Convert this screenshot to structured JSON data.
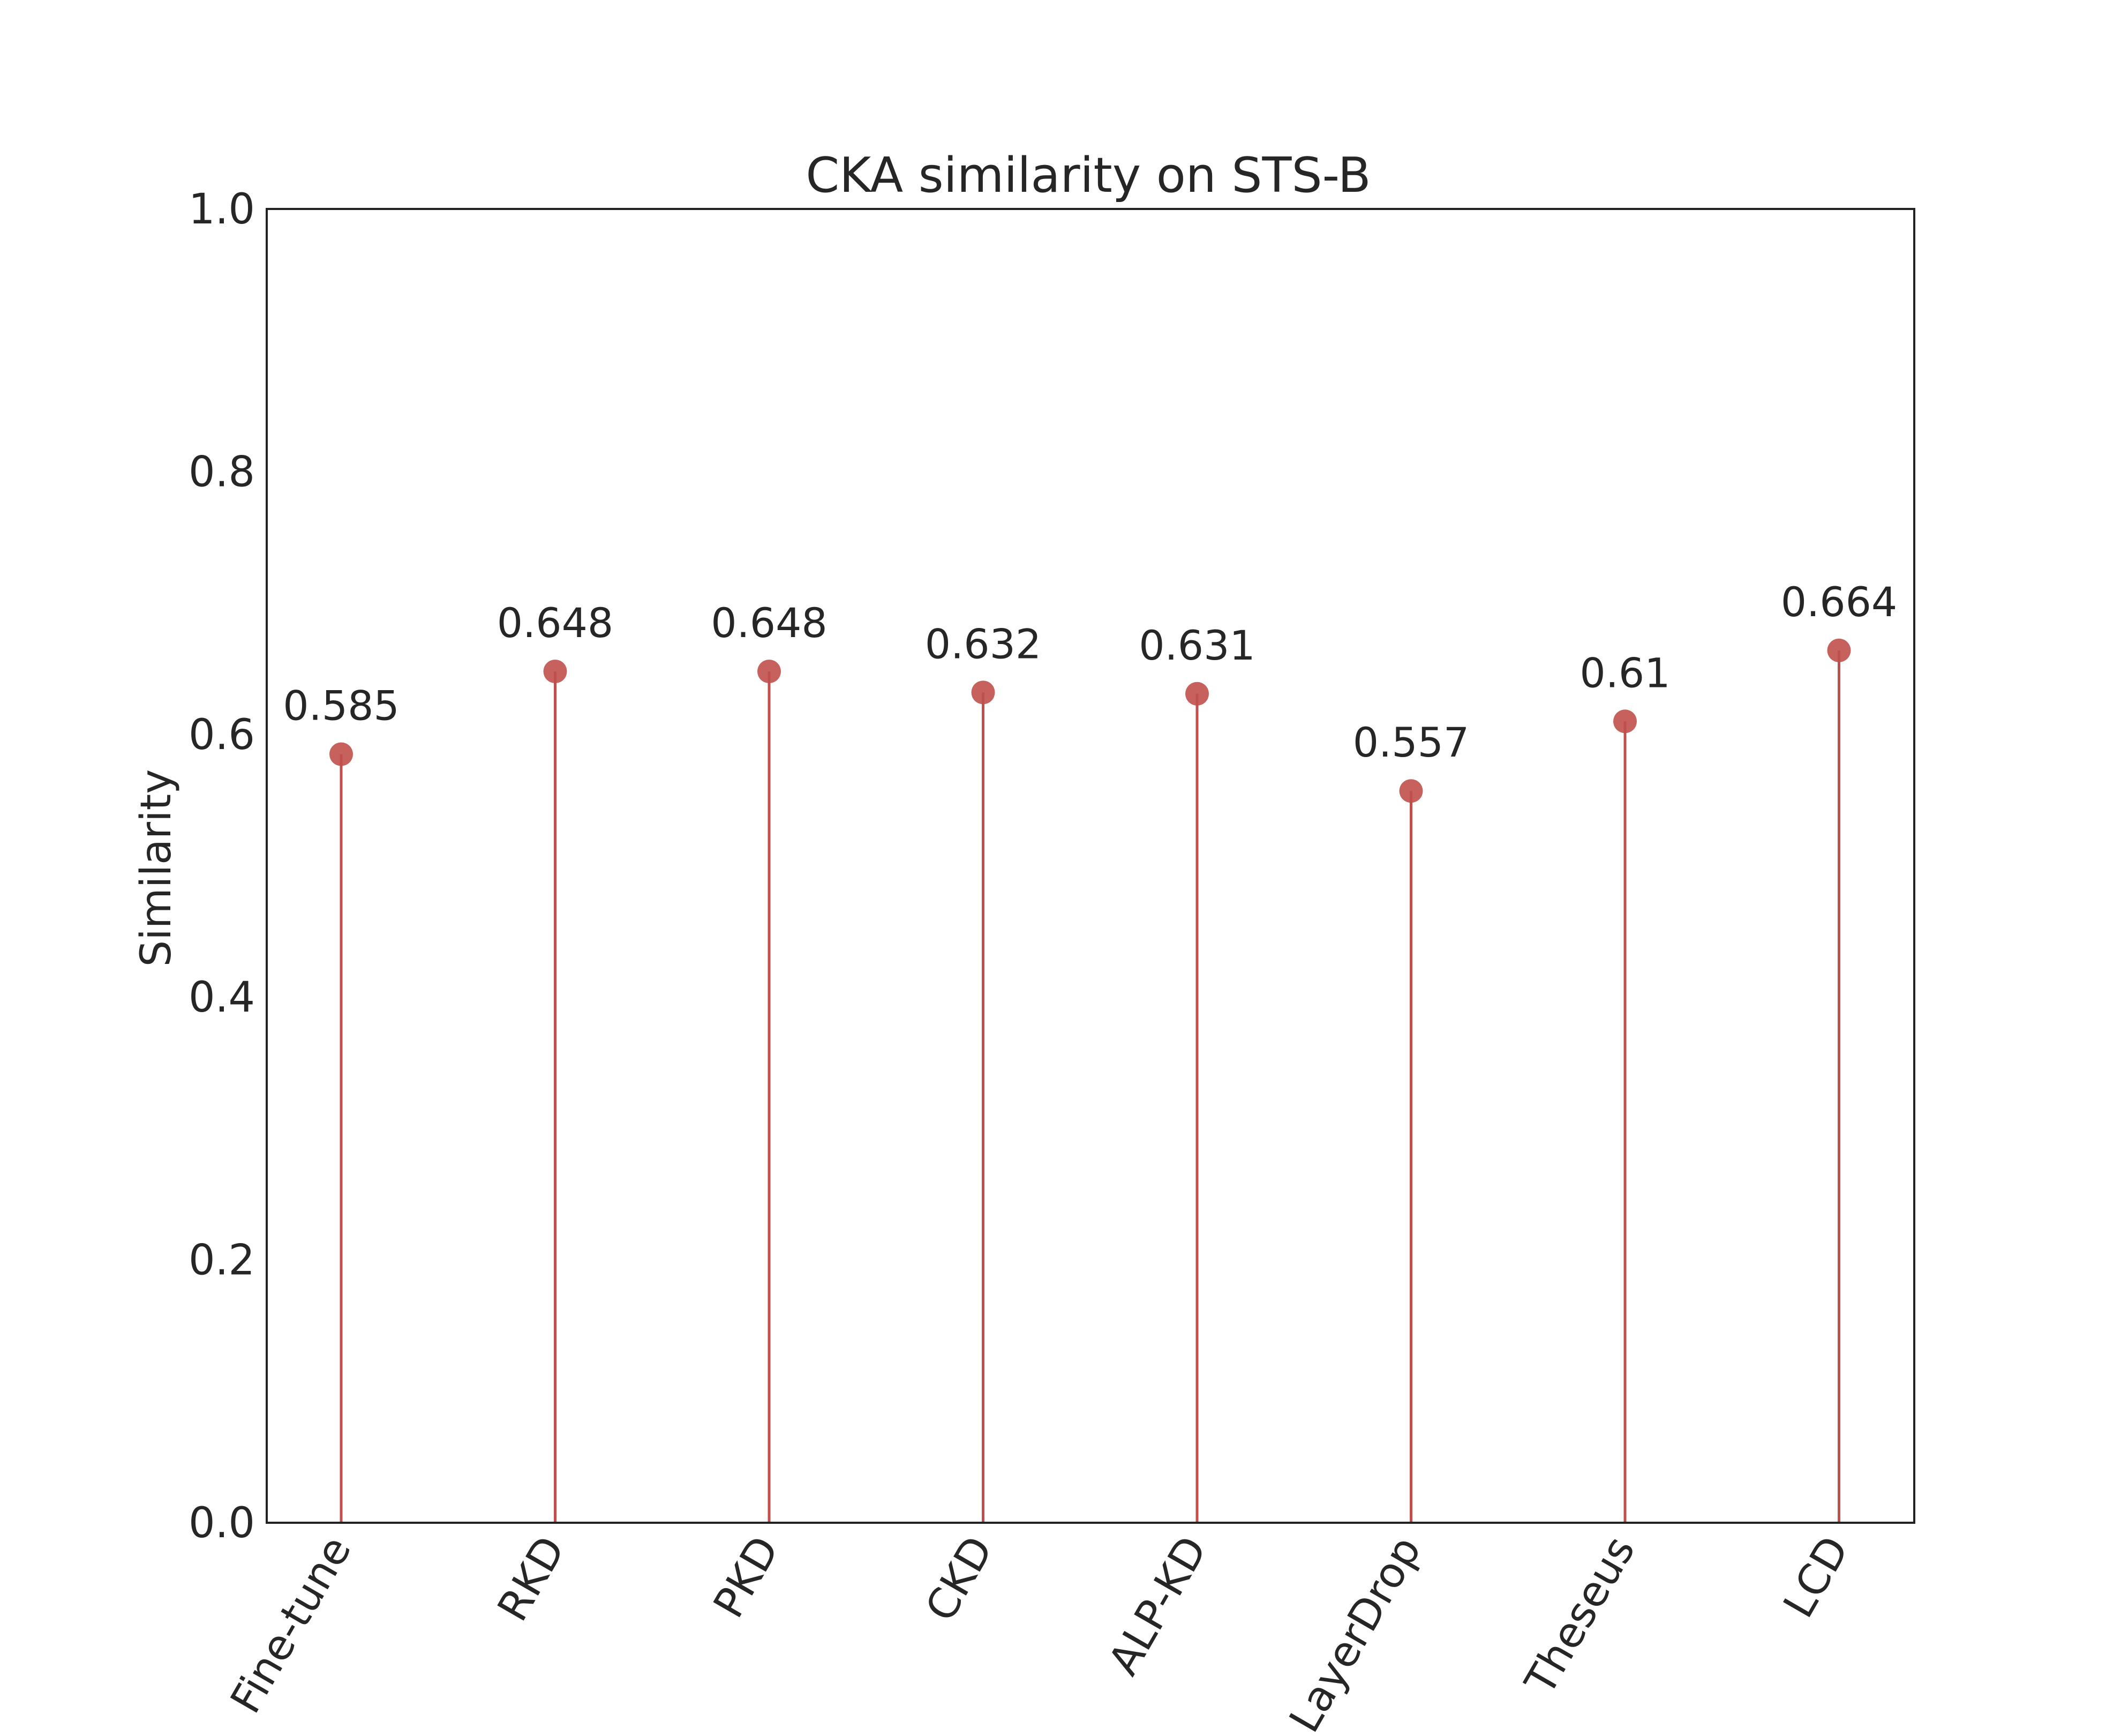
{
  "chart_data": {
    "type": "lollipop",
    "title": "CKA similarity on STS-B",
    "xlabel": "",
    "ylabel": "Similarity",
    "ylim": [
      0.0,
      1.0
    ],
    "yticks": [
      "0.0",
      "0.2",
      "0.4",
      "0.6",
      "0.8",
      "1.0"
    ],
    "categories": [
      "Fine-tune",
      "RKD",
      "PKD",
      "CKD",
      "ALP-KD",
      "LayerDrop",
      "Theseus",
      "LCD"
    ],
    "values": [
      0.585,
      0.648,
      0.648,
      0.632,
      0.631,
      0.557,
      0.61,
      0.664
    ],
    "value_labels": [
      "0.585",
      "0.648",
      "0.648",
      "0.632",
      "0.631",
      "0.557",
      "0.61",
      "0.664"
    ],
    "color": "#c0504d",
    "grid": false,
    "legend": "none"
  }
}
